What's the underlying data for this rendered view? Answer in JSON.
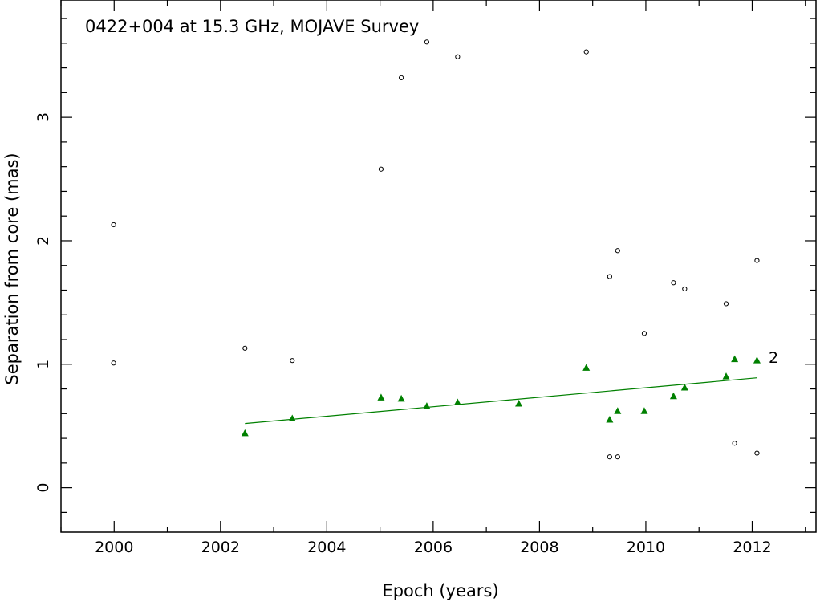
{
  "chart_data": {
    "type": "scatter",
    "title": "0422+004 at 15.3 GHz, MOJAVE Survey",
    "xlabel": "Epoch (years)",
    "ylabel": "Separation from core (mas)",
    "xlim": [
      1999.0,
      2013.2
    ],
    "ylim": [
      -0.36,
      3.95
    ],
    "xticks": [
      2000,
      2002,
      2004,
      2006,
      2008,
      2010,
      2012
    ],
    "xtick_labels": [
      "2000",
      "2002",
      "2004",
      "2006",
      "2008",
      "2010",
      "2012"
    ],
    "yticks": [
      0,
      1,
      2,
      3
    ],
    "ytick_labels": [
      "0",
      "1",
      "2",
      "3"
    ],
    "grid": false,
    "colors": {
      "axis": "#000000",
      "component": "#008000",
      "fit": "#008000",
      "fit_label": "#3cb43c"
    },
    "series": [
      {
        "marker": "open-circle",
        "color": "#000000",
        "points": [
          [
            1999.99,
            2.13
          ],
          [
            1999.99,
            1.01
          ],
          [
            2002.46,
            1.13
          ],
          [
            2003.35,
            1.03
          ],
          [
            2005.02,
            2.58
          ],
          [
            2005.4,
            3.32
          ],
          [
            2005.88,
            3.61
          ],
          [
            2006.46,
            3.49
          ],
          [
            2008.88,
            3.53
          ],
          [
            2009.32,
            1.71
          ],
          [
            2009.32,
            0.25
          ],
          [
            2009.47,
            1.92
          ],
          [
            2009.47,
            0.25
          ],
          [
            2009.97,
            1.25
          ],
          [
            2010.52,
            1.66
          ],
          [
            2010.73,
            1.61
          ],
          [
            2011.51,
            1.49
          ],
          [
            2011.67,
            0.36
          ],
          [
            2012.09,
            1.84
          ],
          [
            2012.09,
            0.28
          ]
        ]
      },
      {
        "name": "2",
        "marker": "filled-triangle",
        "color": "#008000",
        "points": [
          [
            2002.46,
            0.44
          ],
          [
            2003.35,
            0.56
          ],
          [
            2005.02,
            0.73
          ],
          [
            2005.4,
            0.72
          ],
          [
            2005.88,
            0.66
          ],
          [
            2006.46,
            0.69
          ],
          [
            2007.61,
            0.68
          ],
          [
            2008.88,
            0.97
          ],
          [
            2009.32,
            0.55
          ],
          [
            2009.47,
            0.62
          ],
          [
            2009.97,
            0.62
          ],
          [
            2010.52,
            0.74
          ],
          [
            2010.73,
            0.81
          ],
          [
            2011.51,
            0.9
          ],
          [
            2011.67,
            1.04
          ],
          [
            2012.09,
            1.03
          ]
        ],
        "fit": {
          "x": [
            2002.46,
            2012.09
          ],
          "y": [
            0.52,
            0.89
          ]
        }
      }
    ]
  }
}
